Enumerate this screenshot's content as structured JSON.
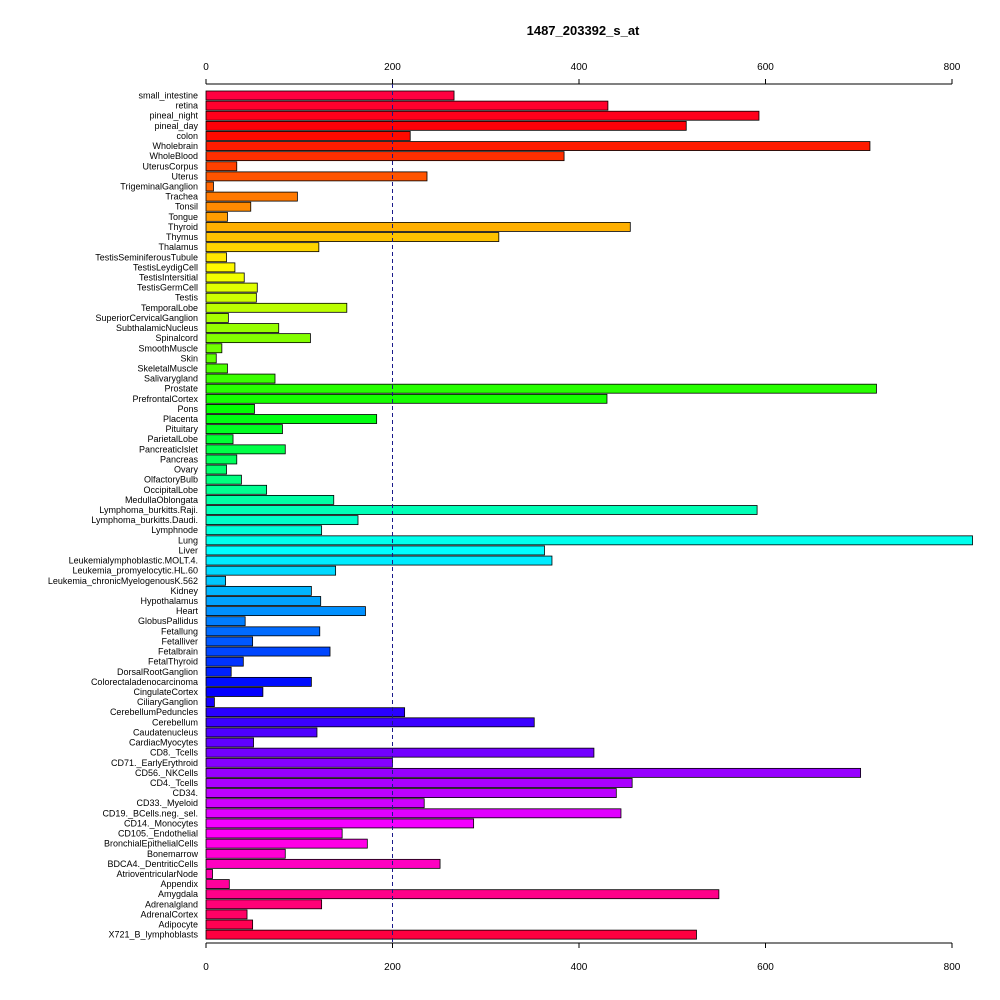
{
  "chart_data": {
    "type": "bar",
    "orientation": "horizontal",
    "title": "1487_203392_s_at",
    "xlabel": "",
    "ylabel": "",
    "xlim": [
      0,
      800
    ],
    "xticks": [
      "0",
      "200",
      "400",
      "600",
      "800"
    ],
    "tick_values": [
      0,
      200,
      400,
      600,
      800
    ],
    "reference_line": 200,
    "reference_line_style": "dashed",
    "reference_line_color": "#1a1a8a",
    "grid": false,
    "legend": "none",
    "color_scheme": "rainbow (red → magenta → blue → cyan → green → yellow → orange → red)",
    "categories": [
      "small_intestine",
      "retina",
      "pineal_night",
      "pineal_day",
      "colon",
      "Wholebrain",
      "WholeBlood",
      "UterusCorpus",
      "Uterus",
      "TrigeminalGanglion",
      "Trachea",
      "Tonsil",
      "Tongue",
      "Thyroid",
      "Thymus",
      "Thalamus",
      "TestisSeminiferousTubule",
      "TestisLeydigCell",
      "TestisIntersitial",
      "TestisGermCell",
      "Testis",
      "TemporalLobe",
      "SuperiorCervicalGanglion",
      "SubthalamicNucleus",
      "Spinalcord",
      "SmoothMuscle",
      "Skin",
      "SkeletalMuscle",
      "Salivarygland",
      "Prostate",
      "PrefrontalCortex",
      "Pons",
      "Placenta",
      "Pituitary",
      "ParietalLobe",
      "PancreaticIslet",
      "Pancreas",
      "Ovary",
      "OlfactoryBulb",
      "OccipitalLobe",
      "MedullaOblongata",
      "Lymphoma_burkitts.Raji.",
      "Lymphoma_burkitts.Daudi.",
      "Lymphnode",
      "Lung",
      "Liver",
      "Leukemialymphoblastic.MOLT.4.",
      "Leukemia_promyelocytic.HL.60",
      "Leukemia_chronicMyelogenousK.562",
      "Kidney",
      "Hypothalamus",
      "Heart",
      "GlobusPallidus",
      "Fetallung",
      "Fetalliver",
      "Fetalbrain",
      "FetalThyroid",
      "DorsalRootGanglion",
      "Colorectaladenocarcinoma",
      "CingulateCortex",
      "CiliaryGanglion",
      "CerebellumPeduncles",
      "Cerebellum",
      "Caudatenucleus",
      "CardiacMyocytes",
      "CD8._Tcells",
      "CD71._EarlyErythroid",
      "CD56._NKCells",
      "CD4._Tcells",
      "CD34.",
      "CD33._Myeloid",
      "CD19._BCells.neg._sel.",
      "CD14._Monocytes",
      "CD105._Endothelial",
      "BronchialEpithelialCells",
      "Bonemarrow",
      "BDCA4._DentriticCells",
      "AtrioventricularNode",
      "Appendix",
      "Amygdala",
      "Adrenalgland",
      "AdrenalCortex",
      "Adipocyte",
      "X721_B_lymphoblasts"
    ],
    "values": [
      266,
      431,
      593,
      515,
      219,
      712,
      384,
      33,
      237,
      8,
      98,
      48,
      23,
      455,
      314,
      121,
      22,
      31,
      41,
      55,
      54,
      151,
      24,
      78,
      112,
      17,
      11,
      23,
      74,
      719,
      430,
      52,
      183,
      82,
      29,
      85,
      33,
      22,
      38,
      65,
      137,
      591,
      163,
      124,
      822,
      363,
      371,
      139,
      21,
      113,
      123,
      171,
      42,
      122,
      50,
      133,
      40,
      27,
      113,
      61,
      9,
      213,
      352,
      119,
      51,
      416,
      200,
      702,
      457,
      440,
      234,
      445,
      287,
      146,
      173,
      85,
      251,
      7,
      25,
      550,
      124,
      44,
      50,
      526
    ]
  }
}
